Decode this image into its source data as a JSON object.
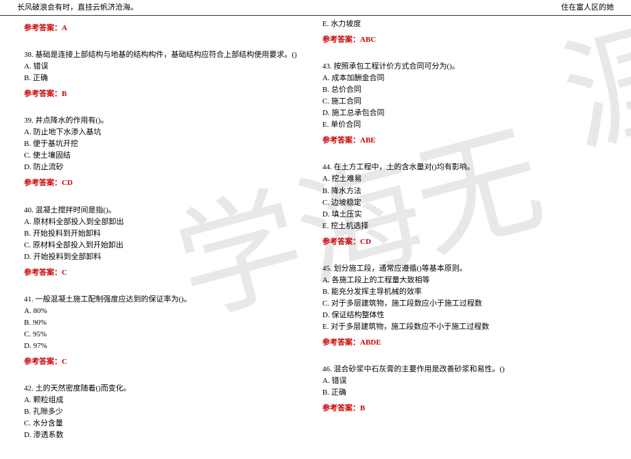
{
  "header": {
    "left": "长风破浪会有时，直挂云帆济沧海。",
    "right": "住在富人区的她"
  },
  "watermark": {
    "text1": "涯",
    "text2": "学海无"
  },
  "left_column": {
    "q37": {
      "answer": "参考答案：A"
    },
    "q38": {
      "stem": "38. 基础是连接上部结构与地基的结构构件，基础结构应符合上部结构使用要求。()",
      "a": "A. 错误",
      "b": "B. 正确",
      "answer": "参考答案：B"
    },
    "q39": {
      "stem": "39. 井点降水的作用有()。",
      "a": "A. 防止地下水渗入基坑",
      "b": "B. 便于基坑开挖",
      "c": "C. 使土壤固结",
      "d": "D. 防止流砂",
      "answer": "参考答案：CD"
    },
    "q40": {
      "stem": "40. 混凝土搅拌时间是指()。",
      "a": "A. 原材料全部投入到全部卸出",
      "b": "B. 开始投料到开始卸料",
      "c": "C. 原材料全部投入到开始卸出",
      "d": "D. 开始投料到全部卸料",
      "answer": "参考答案：C"
    },
    "q41": {
      "stem": "41. 一般混凝土施工配制强度应达到的保证率为()。",
      "a": "A. 80%",
      "b": "B. 90%",
      "c": "C. 95%",
      "d": "D. 97%",
      "answer": "参考答案：C"
    },
    "q42": {
      "stem": "42. 土的天然密度随着()而变化。",
      "a": "A. 颗粒组成",
      "b": "B. 孔隙多少",
      "c": "C. 水分含量",
      "d": "D. 渗透系数"
    }
  },
  "right_column": {
    "q42_cont": {
      "e": "E. 水力坡度",
      "answer": "参考答案：ABC"
    },
    "q43": {
      "stem": "43. 按照承包工程计价方式合同可分为()。",
      "a": "A. 成本加酬金合同",
      "b": "B. 总价合同",
      "c": "C. 施工合同",
      "d": "D. 施工总承包合同",
      "e": "E. 单价合同",
      "answer": "参考答案：ABE"
    },
    "q44": {
      "stem": "44. 在土方工程中，土的含水量对()均有影响。",
      "a": "A. 挖土难易",
      "b": "B. 降水方法",
      "c": "C. 边坡稳定",
      "d": "D. 填土压实",
      "e": "E. 挖土机选择",
      "answer": "参考答案：CD"
    },
    "q45": {
      "stem": "45. 划分施工段，通常应遵循()等基本原则。",
      "a": "A. 各施工段上的工程量大致相等",
      "b": "B. 能充分发挥主导机械的效率",
      "c": "C. 对于多层建筑物，施工段数应小于施工过程数",
      "d": "D. 保证结构整体性",
      "e": "E. 对于多层建筑物，施工段数应不小于施工过程数",
      "answer": "参考答案：ABDE"
    },
    "q46": {
      "stem": "46. 混合砂浆中石灰膏的主要作用是改善砂浆和易性。()",
      "a": "A. 错误",
      "b": "B. 正确",
      "answer": "参考答案：B"
    }
  }
}
